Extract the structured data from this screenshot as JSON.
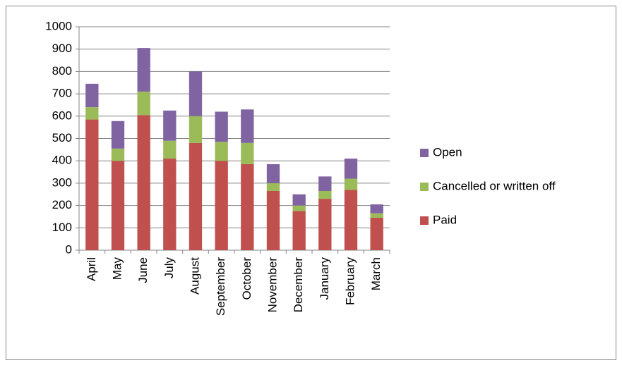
{
  "chart_data": {
    "type": "stacked-bar",
    "categories": [
      "April",
      "May",
      "June",
      "July",
      "August",
      "September",
      "October",
      "November",
      "December",
      "January",
      "February",
      "March"
    ],
    "series": [
      {
        "name": "Paid",
        "color": "#c0504d",
        "values": [
          585,
          400,
          605,
          410,
          480,
          400,
          385,
          265,
          175,
          230,
          270,
          145
        ]
      },
      {
        "name": "Cancelled or written off",
        "color": "#9bbb59",
        "values": [
          55,
          55,
          105,
          80,
          120,
          85,
          95,
          35,
          25,
          35,
          50,
          20
        ]
      },
      {
        "name": "Open",
        "color": "#8064a2",
        "values": [
          105,
          123,
          195,
          135,
          200,
          135,
          150,
          85,
          50,
          65,
          90,
          40
        ]
      }
    ],
    "ylim": [
      0,
      1000
    ],
    "yticks": [
      0,
      100,
      200,
      300,
      400,
      500,
      600,
      700,
      800,
      900,
      1000
    ],
    "grid": true,
    "legend": "right"
  }
}
